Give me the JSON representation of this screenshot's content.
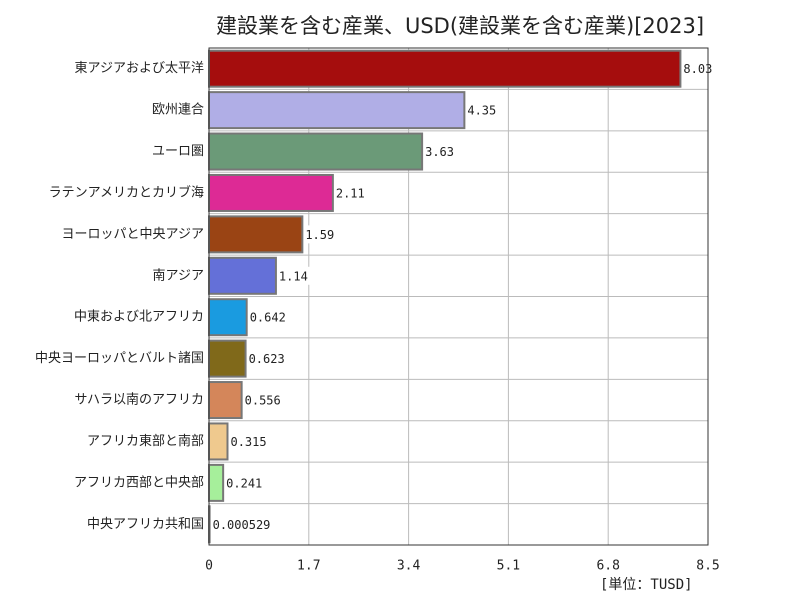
{
  "chart_data": {
    "type": "bar",
    "orientation": "horizontal",
    "title": "建設業を含む産業、USD(建設業を含む産業)[2023]",
    "unit_label": "[単位：TUSD]",
    "categories": [
      "東アジアおよび太平洋",
      "欧州連合",
      "ユーロ圏",
      "ラテンアメリカとカリブ海",
      "ヨーロッパと中央アジア",
      "南アジア",
      "中東および北アフリカ",
      "中央ヨーロッパとバルト諸国",
      "サハラ以南のアフリカ",
      "アフリカ東部と南部",
      "アフリカ西部と中央部",
      "中央アフリカ共和国"
    ],
    "values": [
      8.03,
      4.35,
      3.63,
      2.11,
      1.59,
      1.14,
      0.642,
      0.623,
      0.556,
      0.315,
      0.241,
      0.000529
    ],
    "value_labels": [
      "8.03",
      "4.35",
      "3.63",
      "2.11",
      "1.59",
      "1.14",
      "0.642",
      "0.623",
      "0.556",
      "0.315",
      "0.241",
      "0.000529"
    ],
    "colors": [
      "#a50d0d",
      "#b0aee6",
      "#6b9a78",
      "#dd2a95",
      "#9a4414",
      "#6470d8",
      "#1a9be0",
      "#80691a",
      "#d4865a",
      "#efc98e",
      "#a6ef9b",
      "#ffffff"
    ],
    "xlim": [
      0,
      8.5
    ],
    "xticks": [
      0,
      1.7,
      3.4,
      5.1,
      6.8,
      8.5
    ],
    "xtick_labels": [
      "0",
      "1.7",
      "3.4",
      "5.1",
      "6.8",
      "8.5"
    ],
    "grid": true
  }
}
